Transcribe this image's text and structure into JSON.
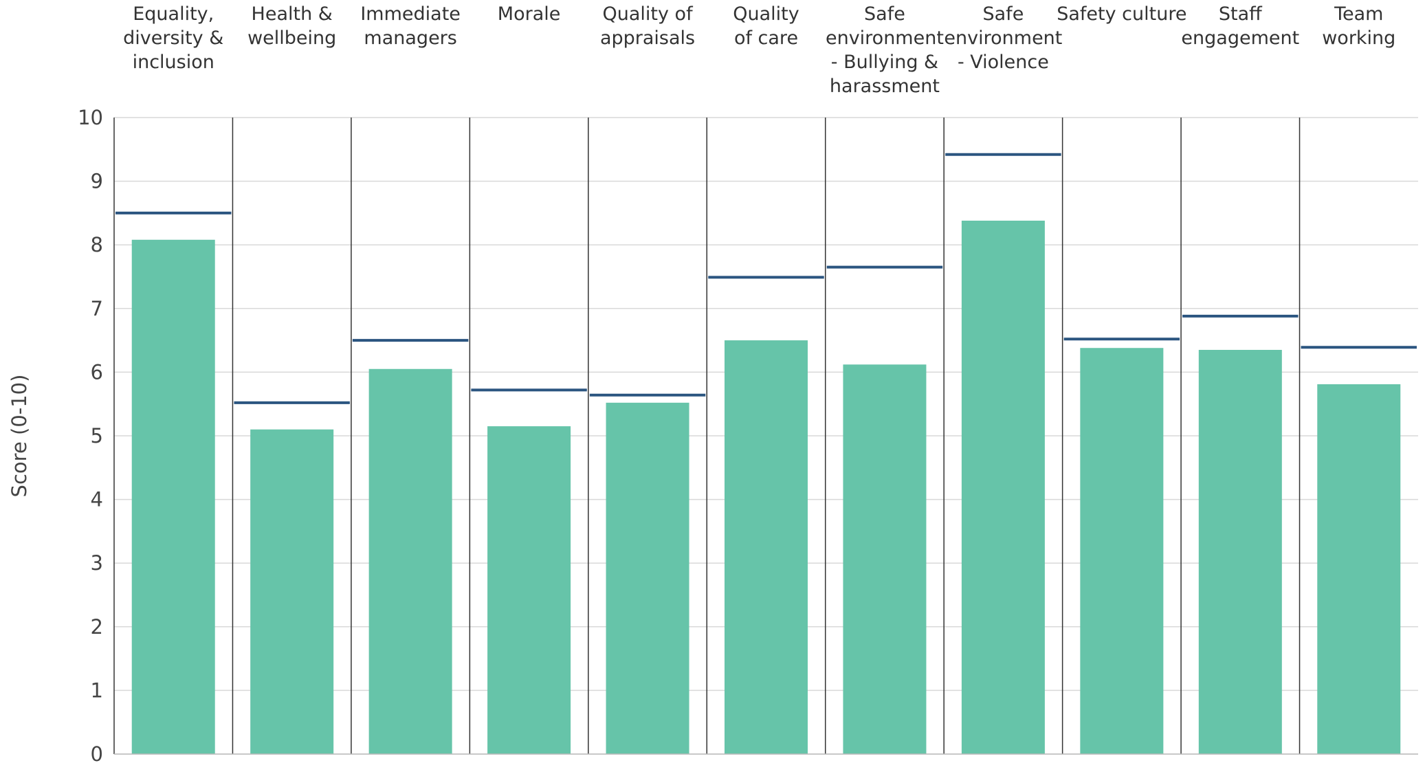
{
  "chart_data": {
    "type": "bar",
    "categories": [
      [
        "Equality,",
        "diversity &",
        "inclusion"
      ],
      [
        "Health &",
        "wellbeing"
      ],
      [
        "Immediate",
        "managers"
      ],
      [
        "Morale"
      ],
      [
        "Quality of",
        "appraisals"
      ],
      [
        "Quality",
        "of care"
      ],
      [
        "Safe",
        "environment",
        "- Bullying &",
        "harassment"
      ],
      [
        "Safe",
        "environment",
        "- Violence"
      ],
      [
        "Safety culture"
      ],
      [
        "Staff",
        "engagement"
      ],
      [
        "Team",
        "working"
      ]
    ],
    "values": [
      8.08,
      5.1,
      6.05,
      5.15,
      5.52,
      6.5,
      6.12,
      8.38,
      6.38,
      6.35,
      5.81
    ],
    "benchmarks": [
      8.5,
      5.52,
      6.5,
      5.72,
      5.64,
      7.49,
      7.65,
      9.42,
      6.52,
      6.88,
      6.39
    ],
    "ylabel": "Score (0-10)",
    "ylim": [
      0,
      10
    ],
    "yticks": [
      "0",
      "1",
      "2",
      "3",
      "4",
      "5",
      "6",
      "7",
      "8",
      "9",
      "10"
    ],
    "grid": true,
    "colors": {
      "bar": "#66c4a9",
      "benchmark": "#2b5580",
      "grid": "#d9d9d9",
      "divider": "#333333"
    }
  }
}
